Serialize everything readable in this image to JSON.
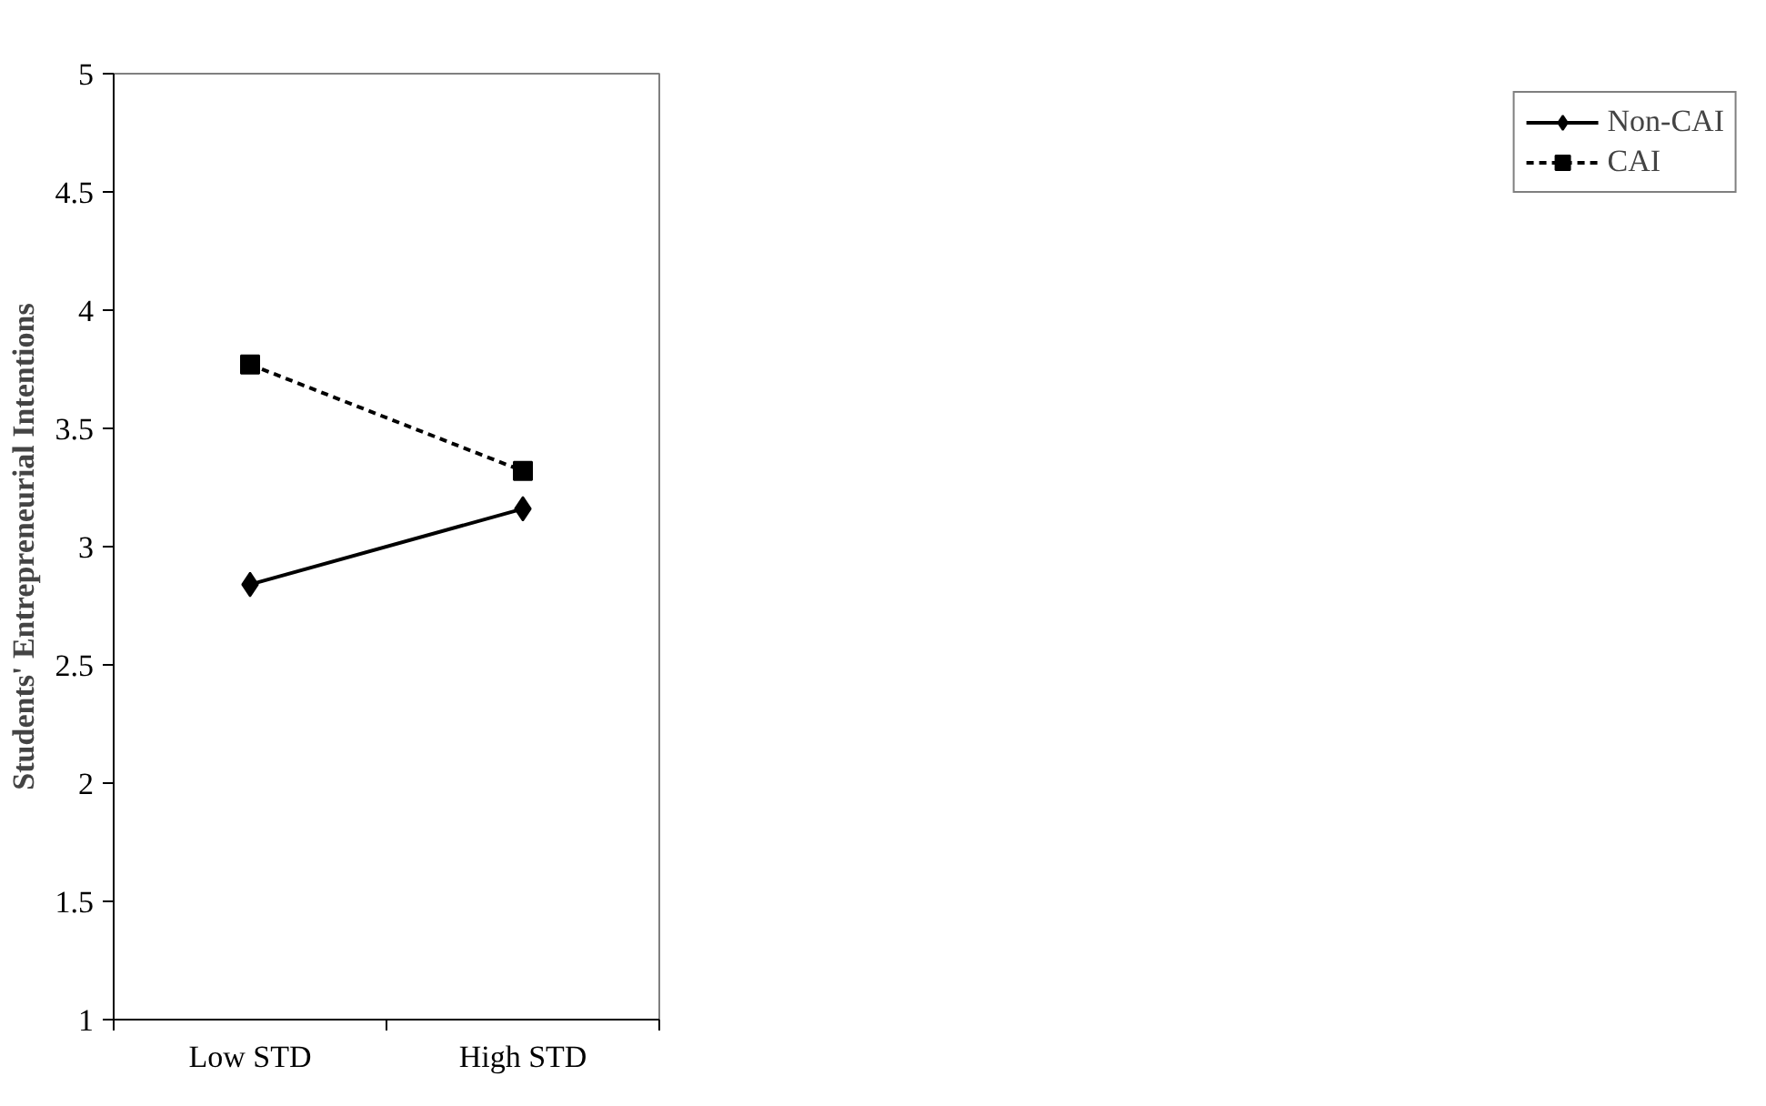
{
  "chart_data": {
    "type": "line",
    "ylabel": "Students' Entrepreneurial Intentions",
    "categories": [
      "Low STD",
      "High STD"
    ],
    "series": [
      {
        "name": "Non-CAI",
        "color": "#000000",
        "values": [
          2.84,
          3.16
        ],
        "marker": "diamond",
        "line_style": "solid"
      },
      {
        "name": "CAI",
        "color": "#000000",
        "values": [
          3.77,
          3.32
        ],
        "marker": "square",
        "line_style": "dashed"
      }
    ],
    "ylim": [
      1,
      5
    ],
    "yticks": [
      1,
      1.5,
      2,
      2.5,
      3,
      3.5,
      4,
      4.5,
      5
    ],
    "grid": false,
    "legend": "right"
  }
}
